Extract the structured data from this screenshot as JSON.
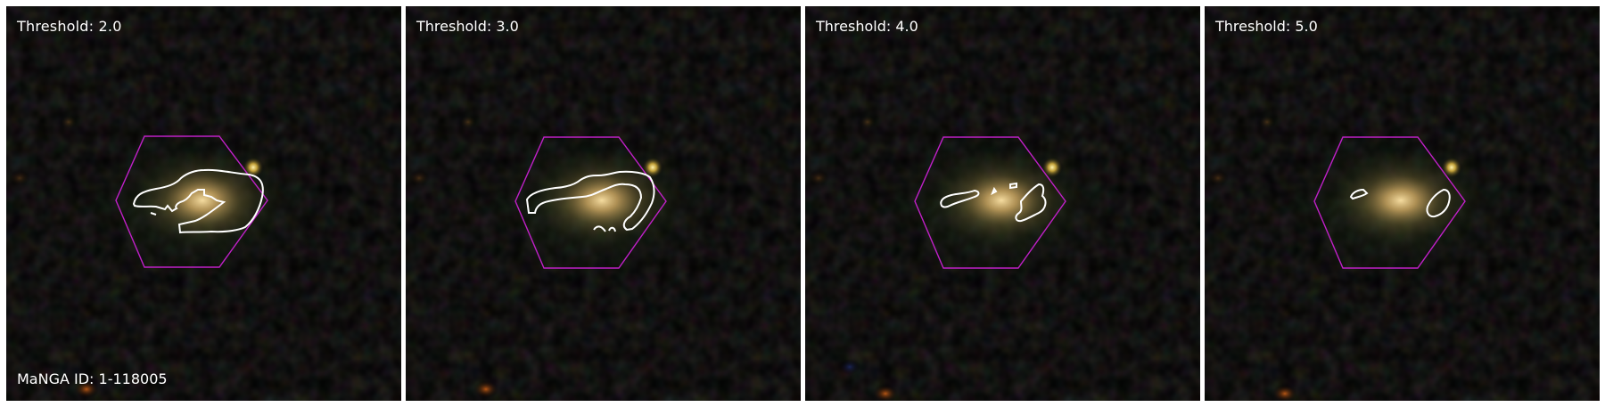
{
  "panels": [
    {
      "title": "Threshold: 2.0",
      "threshold": 2.0
    },
    {
      "title": "Threshold: 3.0",
      "threshold": 3.0
    },
    {
      "title": "Threshold: 4.0",
      "threshold": 4.0
    },
    {
      "title": "Threshold: 5.0",
      "threshold": 5.0
    }
  ],
  "galaxy_id_label": "MaNGA ID: 1-118005",
  "colors": {
    "background": "#000000",
    "hexagon": "#c020c8",
    "contour": "#ffffff",
    "label": "#ffffff"
  }
}
